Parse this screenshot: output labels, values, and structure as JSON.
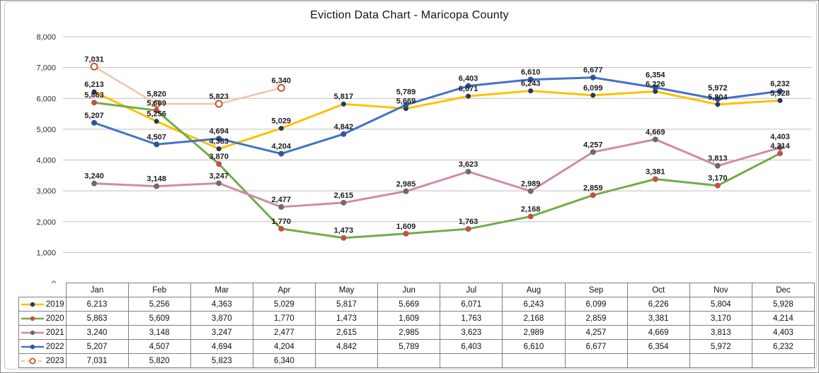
{
  "chart_data": {
    "type": "line",
    "title": "Eviction Data Chart - Maricopa County",
    "categories": [
      "Jan",
      "Feb",
      "Mar",
      "Apr",
      "May",
      "Jun",
      "Jul",
      "Aug",
      "Sep",
      "Oct",
      "Nov",
      "Dec"
    ],
    "series": [
      {
        "name": "2019",
        "line_color": "#FFC000",
        "marker_color": "#1F3864",
        "dashed": false,
        "values": [
          6213,
          5256,
          4363,
          5029,
          5817,
          5669,
          6071,
          6243,
          6099,
          6226,
          5804,
          5928
        ]
      },
      {
        "name": "2020",
        "line_color": "#70AD47",
        "marker_color": "#C0504D",
        "dashed": false,
        "values": [
          5863,
          5609,
          3870,
          1770,
          1473,
          1609,
          1763,
          2168,
          2859,
          3381,
          3170,
          4214
        ]
      },
      {
        "name": "2021",
        "line_color": "#CF8BA9",
        "marker_color": "#6E6873",
        "dashed": false,
        "values": [
          3240,
          3148,
          3247,
          2477,
          2615,
          2985,
          3623,
          2989,
          4257,
          4669,
          3813,
          4403
        ]
      },
      {
        "name": "2022",
        "line_color": "#4472C4",
        "marker_color": "#2F5597",
        "dashed": false,
        "values": [
          5207,
          4507,
          4694,
          4204,
          4842,
          5789,
          6403,
          6610,
          6677,
          6354,
          5972,
          6232
        ]
      },
      {
        "name": "2023",
        "line_color": "#F0C5AC",
        "marker_color": "#C8552A",
        "marker_fill": "#FFFFFF",
        "dashed": true,
        "values": [
          7031,
          5820,
          5823,
          6340,
          null,
          null,
          null,
          null,
          null,
          null,
          null,
          null
        ]
      }
    ],
    "ylim": [
      0,
      8000
    ],
    "y_step": 1000,
    "y_tick_labels": [
      "0",
      "1,000",
      "2,000",
      "3,000",
      "4,000",
      "5,000",
      "6,000",
      "7,000",
      "8,000"
    ],
    "grid": true,
    "data_labels": true,
    "legend_position": "table-left",
    "colors": {
      "gridline": "#BFBFBF",
      "axis_text": "#2B2B2B",
      "label_text": "#1C1C1C",
      "table_border": "#808080"
    }
  }
}
